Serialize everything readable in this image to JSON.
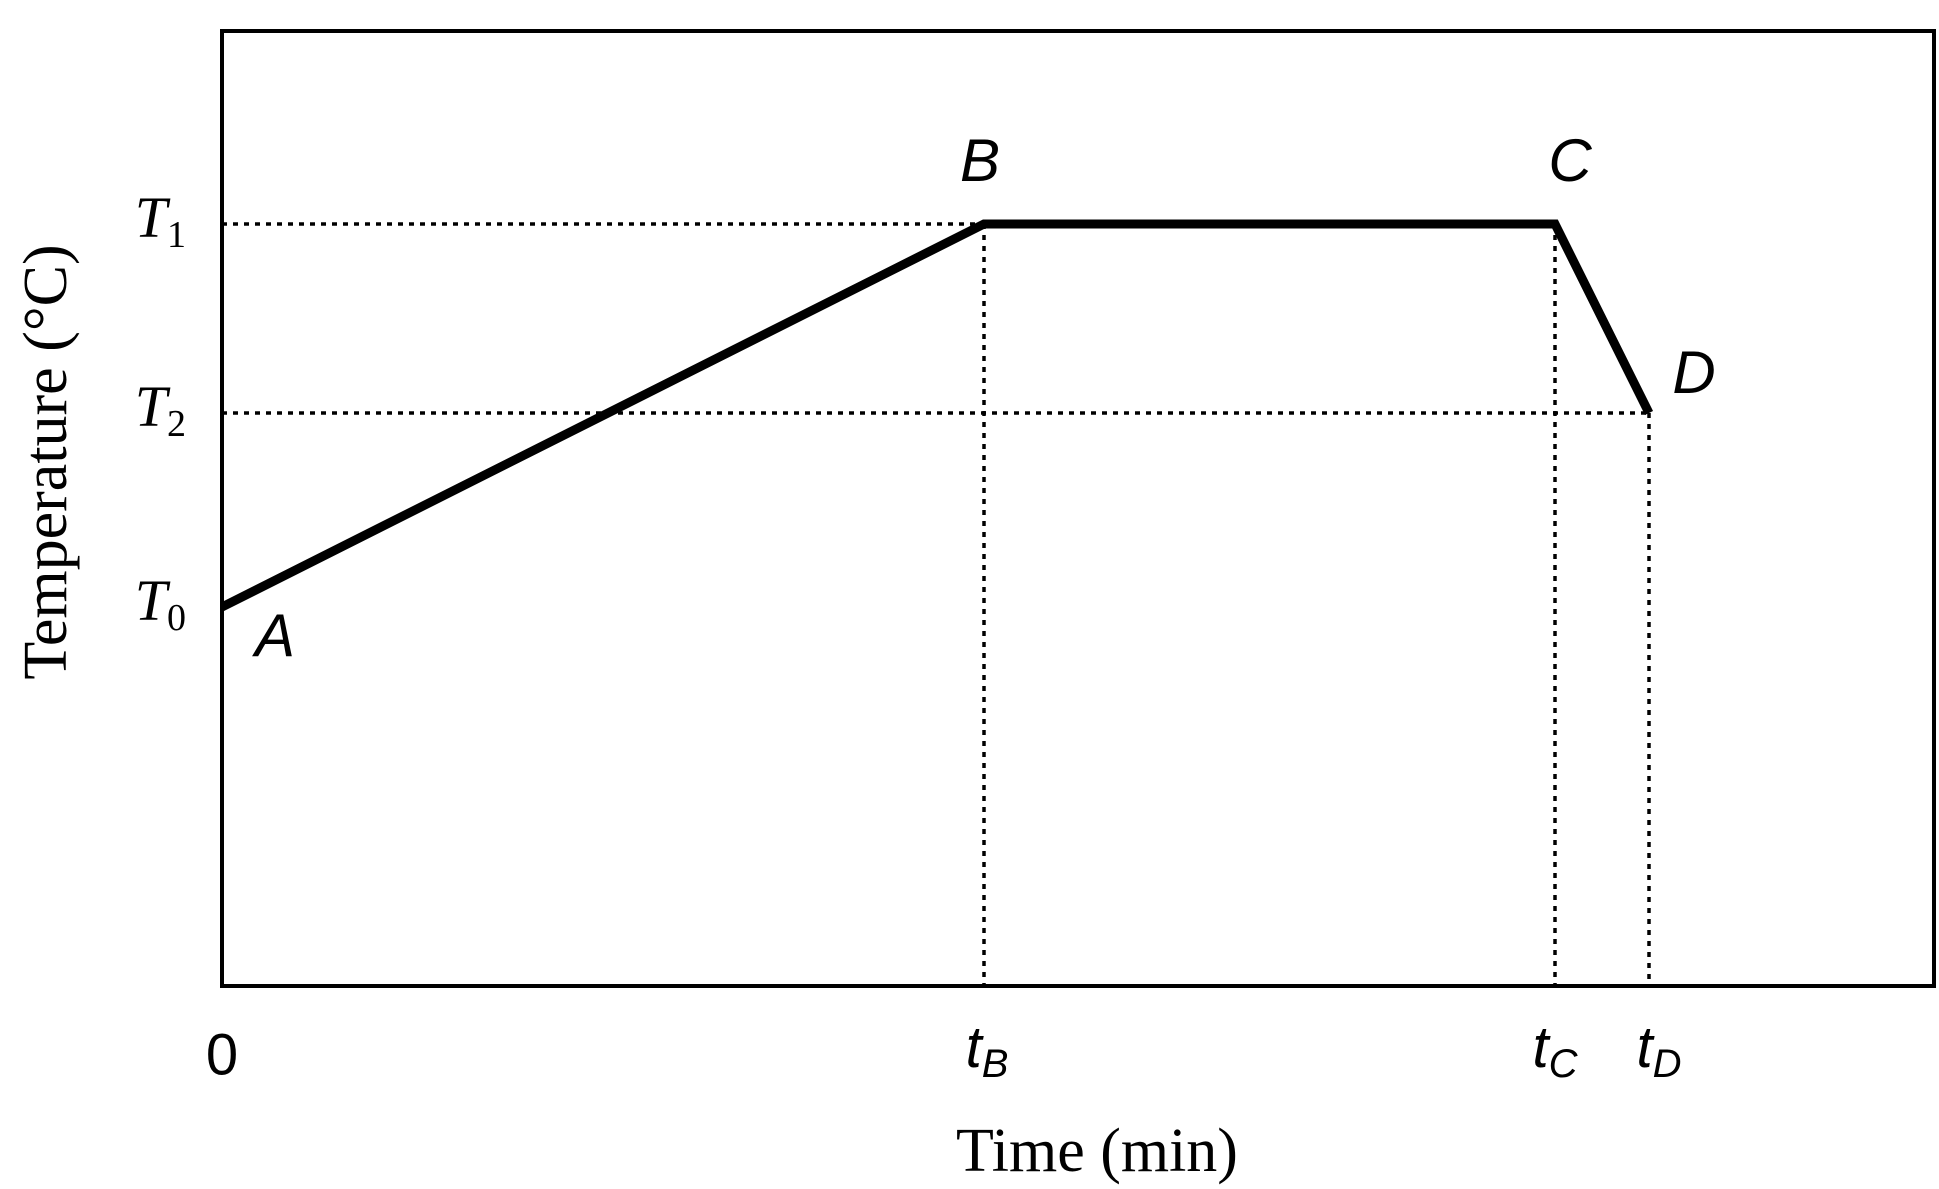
{
  "axes": {
    "x_label": "Time (min)",
    "y_label": "Temperature (°C)",
    "x_origin_label": "0",
    "x_ticks": [
      {
        "symbol": "t",
        "subscript": "B"
      },
      {
        "symbol": "t",
        "subscript": "C"
      },
      {
        "symbol": "t",
        "subscript": "D"
      }
    ],
    "y_ticks": [
      {
        "symbol": "T",
        "subscript": "1"
      },
      {
        "symbol": "T",
        "subscript": "2"
      },
      {
        "symbol": "T",
        "subscript": "0"
      }
    ]
  },
  "points": [
    {
      "label": "A"
    },
    {
      "label": "B"
    },
    {
      "label": "C"
    },
    {
      "label": "D"
    }
  ]
}
